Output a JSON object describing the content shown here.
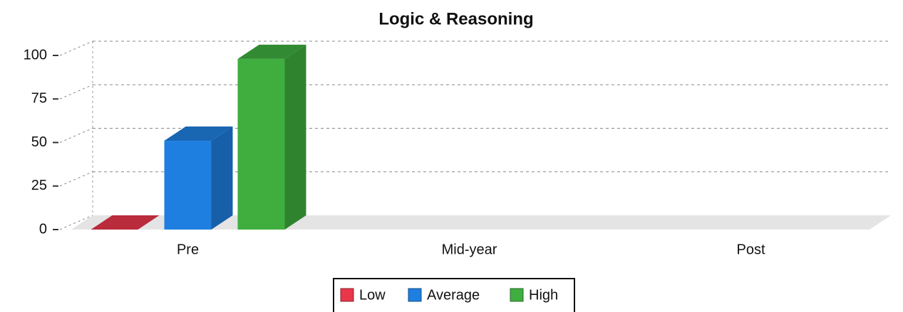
{
  "chart_data": {
    "type": "bar3d",
    "title": "Logic & Reasoning",
    "categories": [
      "Pre",
      "Mid-year",
      "Post"
    ],
    "series": [
      {
        "name": "Low",
        "color": "#e8364a",
        "values": [
          0,
          null,
          null
        ]
      },
      {
        "name": "Average",
        "color": "#1f7fe0",
        "values": [
          51,
          null,
          null
        ]
      },
      {
        "name": "High",
        "color": "#3fae3f",
        "values": [
          98,
          null,
          null
        ]
      }
    ],
    "ylim": [
      0,
      100
    ],
    "yticks": [
      0,
      25,
      50,
      75,
      100
    ],
    "grid": true
  }
}
